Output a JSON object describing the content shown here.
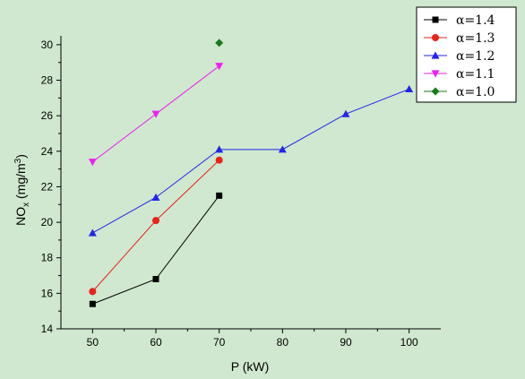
{
  "chart_data": {
    "type": "line",
    "xlabel": "P (kW)",
    "ylabel": {
      "main": "NO",
      "sub": "x",
      "unit_prefix": " (mg/m",
      "unit_sup": "3",
      "unit_suffix": ")"
    },
    "xlim": [
      45,
      105
    ],
    "ylim": [
      14,
      30.5
    ],
    "x_ticks": [
      50,
      60,
      70,
      80,
      90,
      100
    ],
    "y_ticks": [
      14,
      16,
      18,
      20,
      22,
      24,
      26,
      28,
      30
    ],
    "legend_position": "top-right",
    "grid": false,
    "series": [
      {
        "name": "α=1.4",
        "color": "#000000",
        "marker": "square",
        "x": [
          50,
          60,
          70
        ],
        "y": [
          15.4,
          16.8,
          21.5
        ]
      },
      {
        "name": "α=1.3",
        "color": "#e8221b",
        "marker": "circle",
        "x": [
          50,
          60,
          70
        ],
        "y": [
          16.1,
          20.1,
          23.5
        ]
      },
      {
        "name": "α=1.2",
        "color": "#2424e8",
        "marker": "triangle-up",
        "x": [
          50,
          60,
          70,
          80,
          90,
          100
        ],
        "y": [
          19.4,
          21.4,
          24.1,
          24.1,
          26.1,
          27.5
        ]
      },
      {
        "name": "α=1.1",
        "color": "#ee22ee",
        "marker": "triangle-down",
        "x": [
          50,
          60,
          70
        ],
        "y": [
          23.4,
          26.1,
          28.8
        ]
      },
      {
        "name": "α=1.0",
        "color": "#1a7a1a",
        "marker": "diamond",
        "x": [
          70
        ],
        "y": [
          30.1
        ]
      }
    ]
  }
}
